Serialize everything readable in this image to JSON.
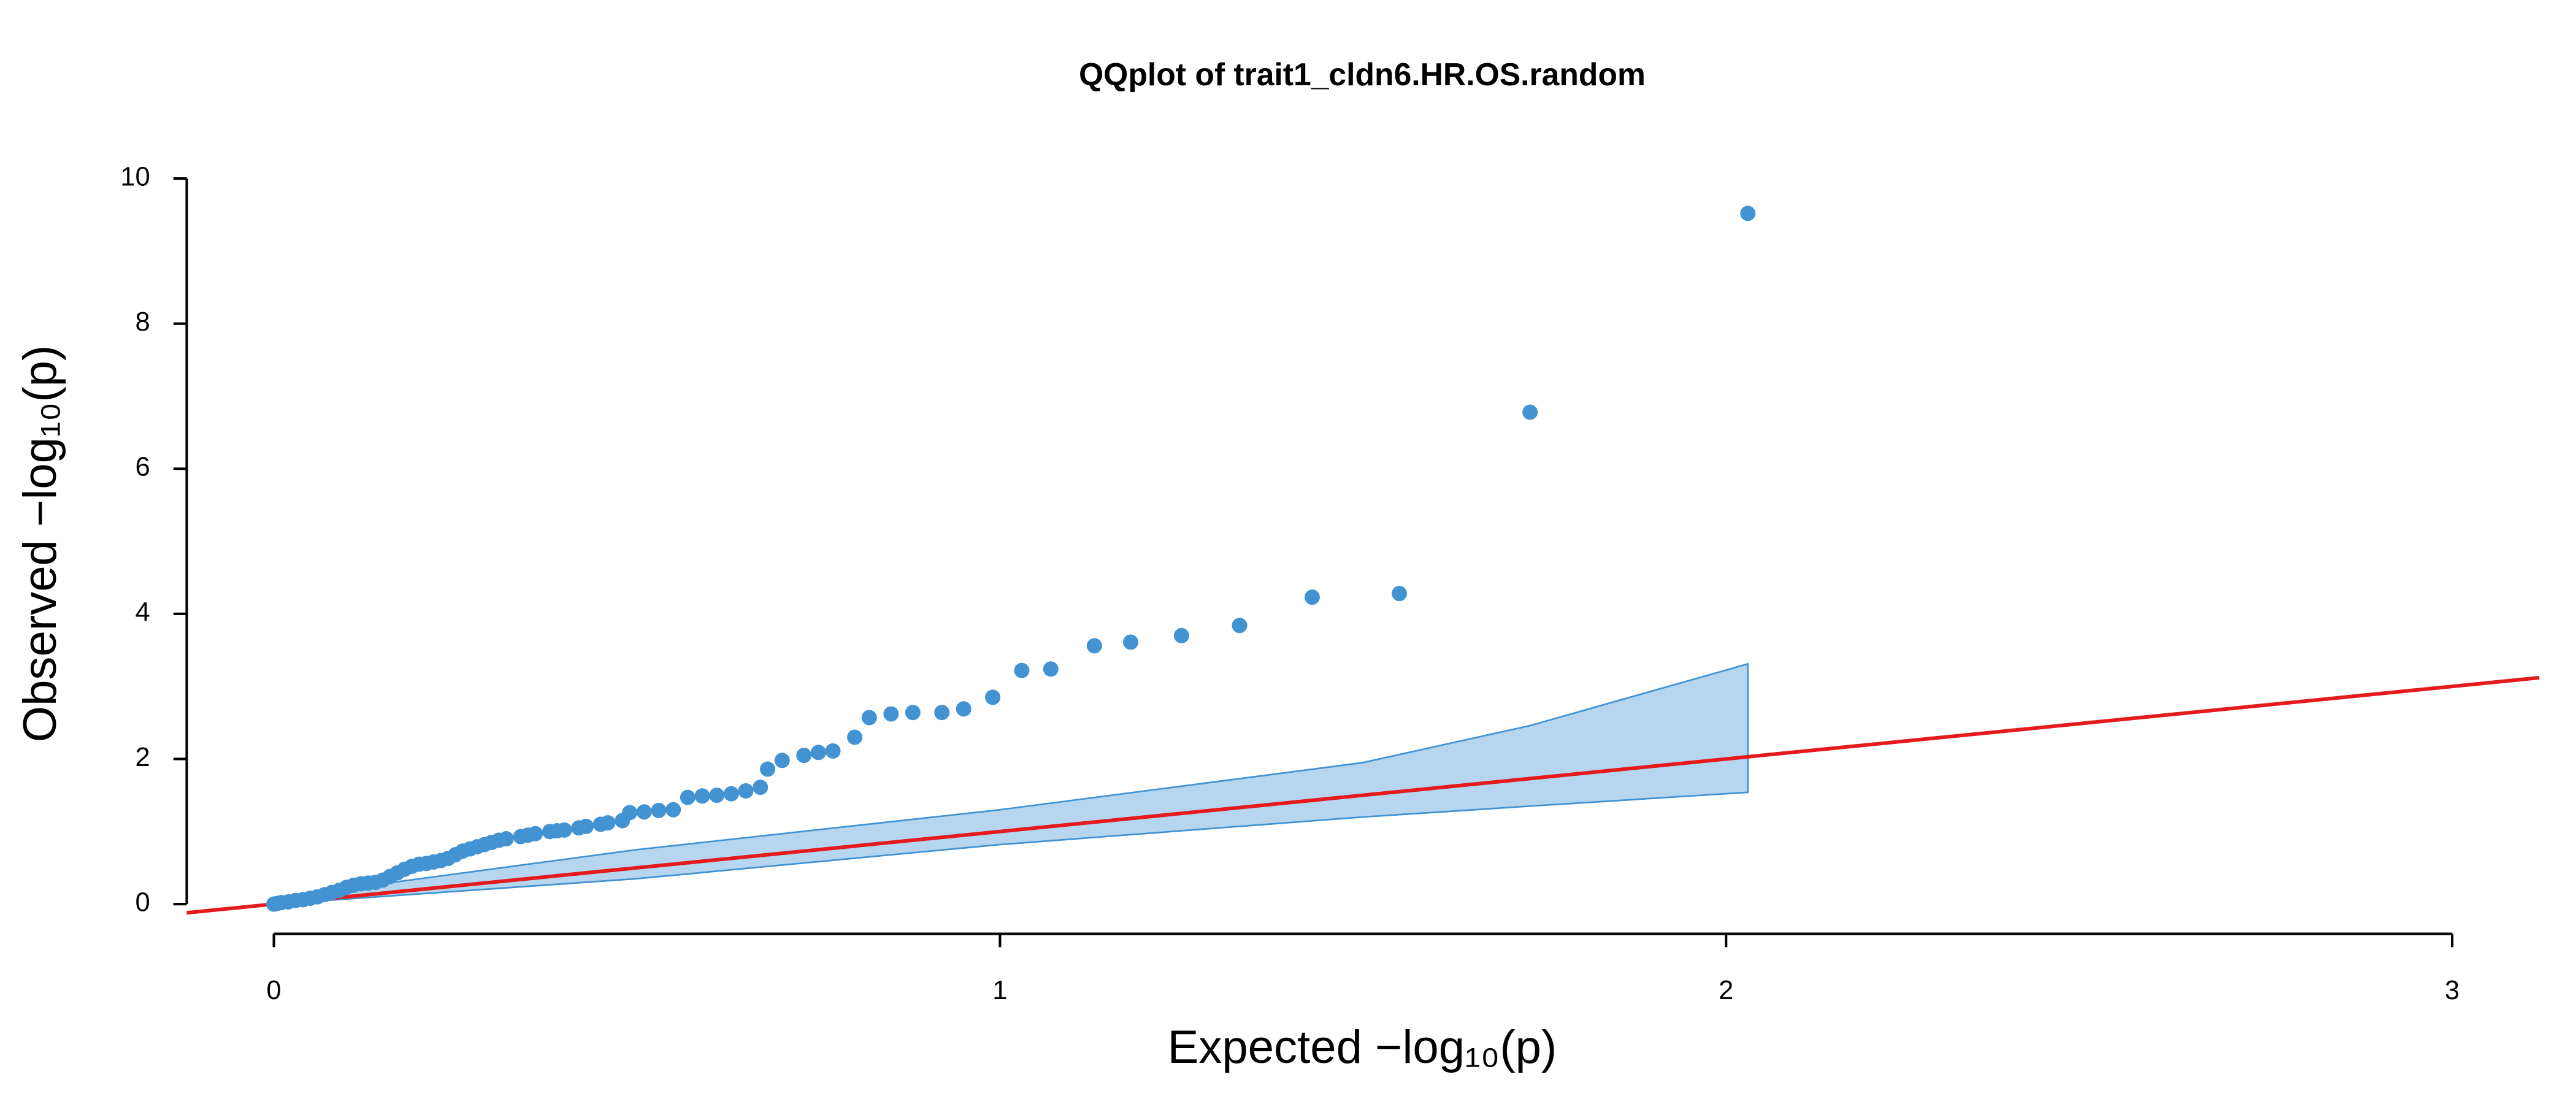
{
  "chart_data": {
    "type": "qq",
    "title": "QQplot of trait1_cldn6.HR.OS.random",
    "xlabel": "Expected −log₁₀(p)",
    "ylabel": "Observed −log₁₀(p)",
    "xlim": [
      -0.12,
      3.12
    ],
    "ylim": [
      -0.41,
      10.4
    ],
    "xticks": [
      0,
      1,
      2,
      3
    ],
    "yticks": [
      0,
      2,
      4,
      6,
      8,
      10
    ],
    "point_color": "#4393d3",
    "band_fill": "#b6d6f0",
    "band_stroke": "#4393d3",
    "line_color": "#e41a1c",
    "reference_line": {
      "slope": 1,
      "intercept": 0
    },
    "band": {
      "x": [
        0,
        0.5,
        1,
        1.5,
        1.73,
        2.03
      ],
      "upper": [
        0.08,
        0.75,
        1.3,
        1.95,
        2.46,
        3.31
      ],
      "lower": [
        0,
        0.35,
        0.82,
        1.2,
        1.35,
        1.54
      ]
    },
    "x": [
      2.03,
      1.73,
      1.55,
      1.43,
      1.33,
      1.25,
      1.18,
      1.13,
      1.07,
      1.03,
      0.99,
      0.95,
      0.92,
      0.88,
      0.85,
      0.82,
      0.8,
      0.77,
      0.75,
      0.73,
      0.7,
      0.68,
      0.67,
      0.65,
      0.63,
      0.61,
      0.59,
      0.57,
      0.55,
      0.53,
      0.51,
      0.49,
      0.48,
      0.46,
      0.45,
      0.43,
      0.42,
      0.4,
      0.39,
      0.38,
      0.36,
      0.35,
      0.34,
      0.32,
      0.31,
      0.3,
      0.29,
      0.28,
      0.27,
      0.26,
      0.25,
      0.24,
      0.23,
      0.22,
      0.21,
      0.2,
      0.19,
      0.18,
      0.17,
      0.16,
      0.15,
      0.14,
      0.13,
      0.12,
      0.11,
      0.1,
      0.09,
      0.08,
      0.07,
      0.06,
      0.05,
      0.04,
      0.03,
      0.02,
      0.01,
      0.005,
      0
    ],
    "y": [
      9.52,
      6.78,
      4.28,
      4.23,
      3.84,
      3.7,
      3.61,
      3.56,
      3.24,
      3.22,
      2.85,
      2.69,
      2.64,
      2.64,
      2.62,
      2.57,
      2.3,
      2.11,
      2.09,
      2.05,
      1.98,
      1.86,
      1.61,
      1.56,
      1.52,
      1.5,
      1.49,
      1.47,
      1.3,
      1.29,
      1.27,
      1.26,
      1.15,
      1.12,
      1.1,
      1.07,
      1.05,
      1.02,
      1.01,
      1.0,
      0.97,
      0.95,
      0.93,
      0.9,
      0.88,
      0.85,
      0.82,
      0.79,
      0.76,
      0.73,
      0.68,
      0.63,
      0.6,
      0.58,
      0.56,
      0.55,
      0.52,
      0.48,
      0.43,
      0.38,
      0.33,
      0.3,
      0.29,
      0.28,
      0.26,
      0.23,
      0.19,
      0.16,
      0.13,
      0.1,
      0.08,
      0.06,
      0.05,
      0.03,
      0.02,
      0.01,
      0
    ]
  }
}
